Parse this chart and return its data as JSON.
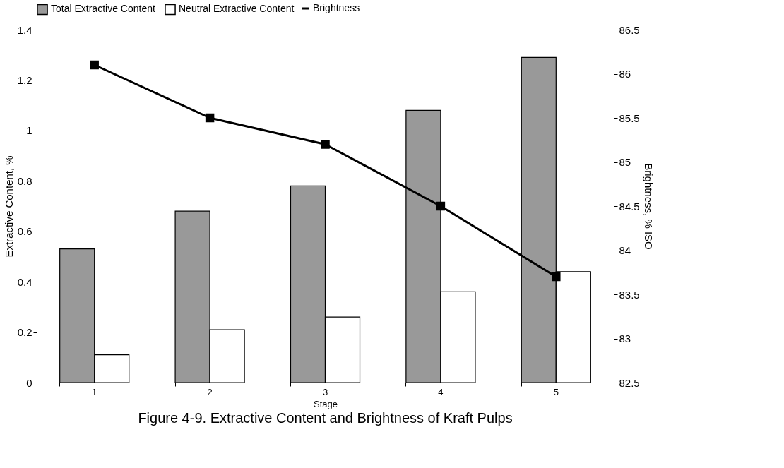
{
  "chart_data": {
    "type": "bar",
    "title": "Figure 4-9. Extractive Content and Brightness of Kraft Pulps",
    "xlabel": "Stage",
    "ylabel": "Extractive Content, %",
    "y2label": "Brightness, % ISO",
    "categories": [
      "1",
      "2",
      "3",
      "4",
      "5"
    ],
    "series": [
      {
        "name": "Total Extractive Content",
        "color": "#999999",
        "values": [
          0.53,
          0.68,
          0.78,
          1.08,
          1.29
        ]
      },
      {
        "name": "Neutral Extractive Content",
        "color": "#ffffff",
        "values": [
          0.11,
          0.21,
          0.26,
          0.36,
          0.44
        ]
      },
      {
        "name": "Brightness",
        "type": "line",
        "axis": "y2",
        "color": "#000000",
        "values": [
          86.1,
          85.5,
          85.2,
          84.5,
          83.7
        ]
      }
    ],
    "ylim": [
      0,
      1.4
    ],
    "yticks": [
      0,
      0.2,
      0.4,
      0.6,
      0.8,
      1,
      1.2,
      1.4
    ],
    "y2lim": [
      82.5,
      86.5
    ],
    "y2ticks": [
      82.5,
      83,
      83.5,
      84,
      84.5,
      85,
      85.5,
      86,
      86.5
    ],
    "grid": false,
    "legend": "top",
    "marker": "square",
    "line_style": "solid"
  }
}
